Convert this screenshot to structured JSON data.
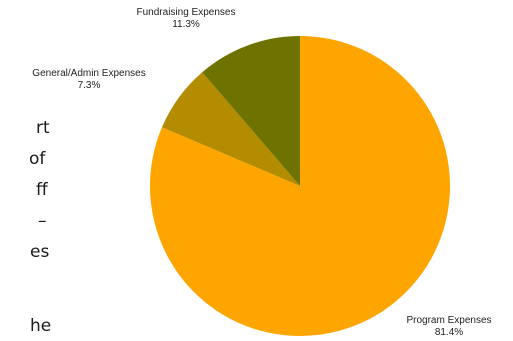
{
  "chart_data": {
    "type": "pie",
    "title": "",
    "start": "12 o'clock",
    "direction": "clockwise",
    "slices": [
      {
        "label": "Program Expenses",
        "value": 81.4,
        "display": "81.4%",
        "color": "#FFA500"
      },
      {
        "label": "General/Admin Expenses",
        "value": 7.3,
        "display": "7.3%",
        "color": "#B48C00"
      },
      {
        "label": "Fundraising Expenses",
        "value": 11.3,
        "display": "11.3%",
        "color": "#6E7300"
      }
    ]
  },
  "left_text_fragments": [
    "rt",
    "of",
    "ff",
    "–",
    "es",
    "he"
  ]
}
